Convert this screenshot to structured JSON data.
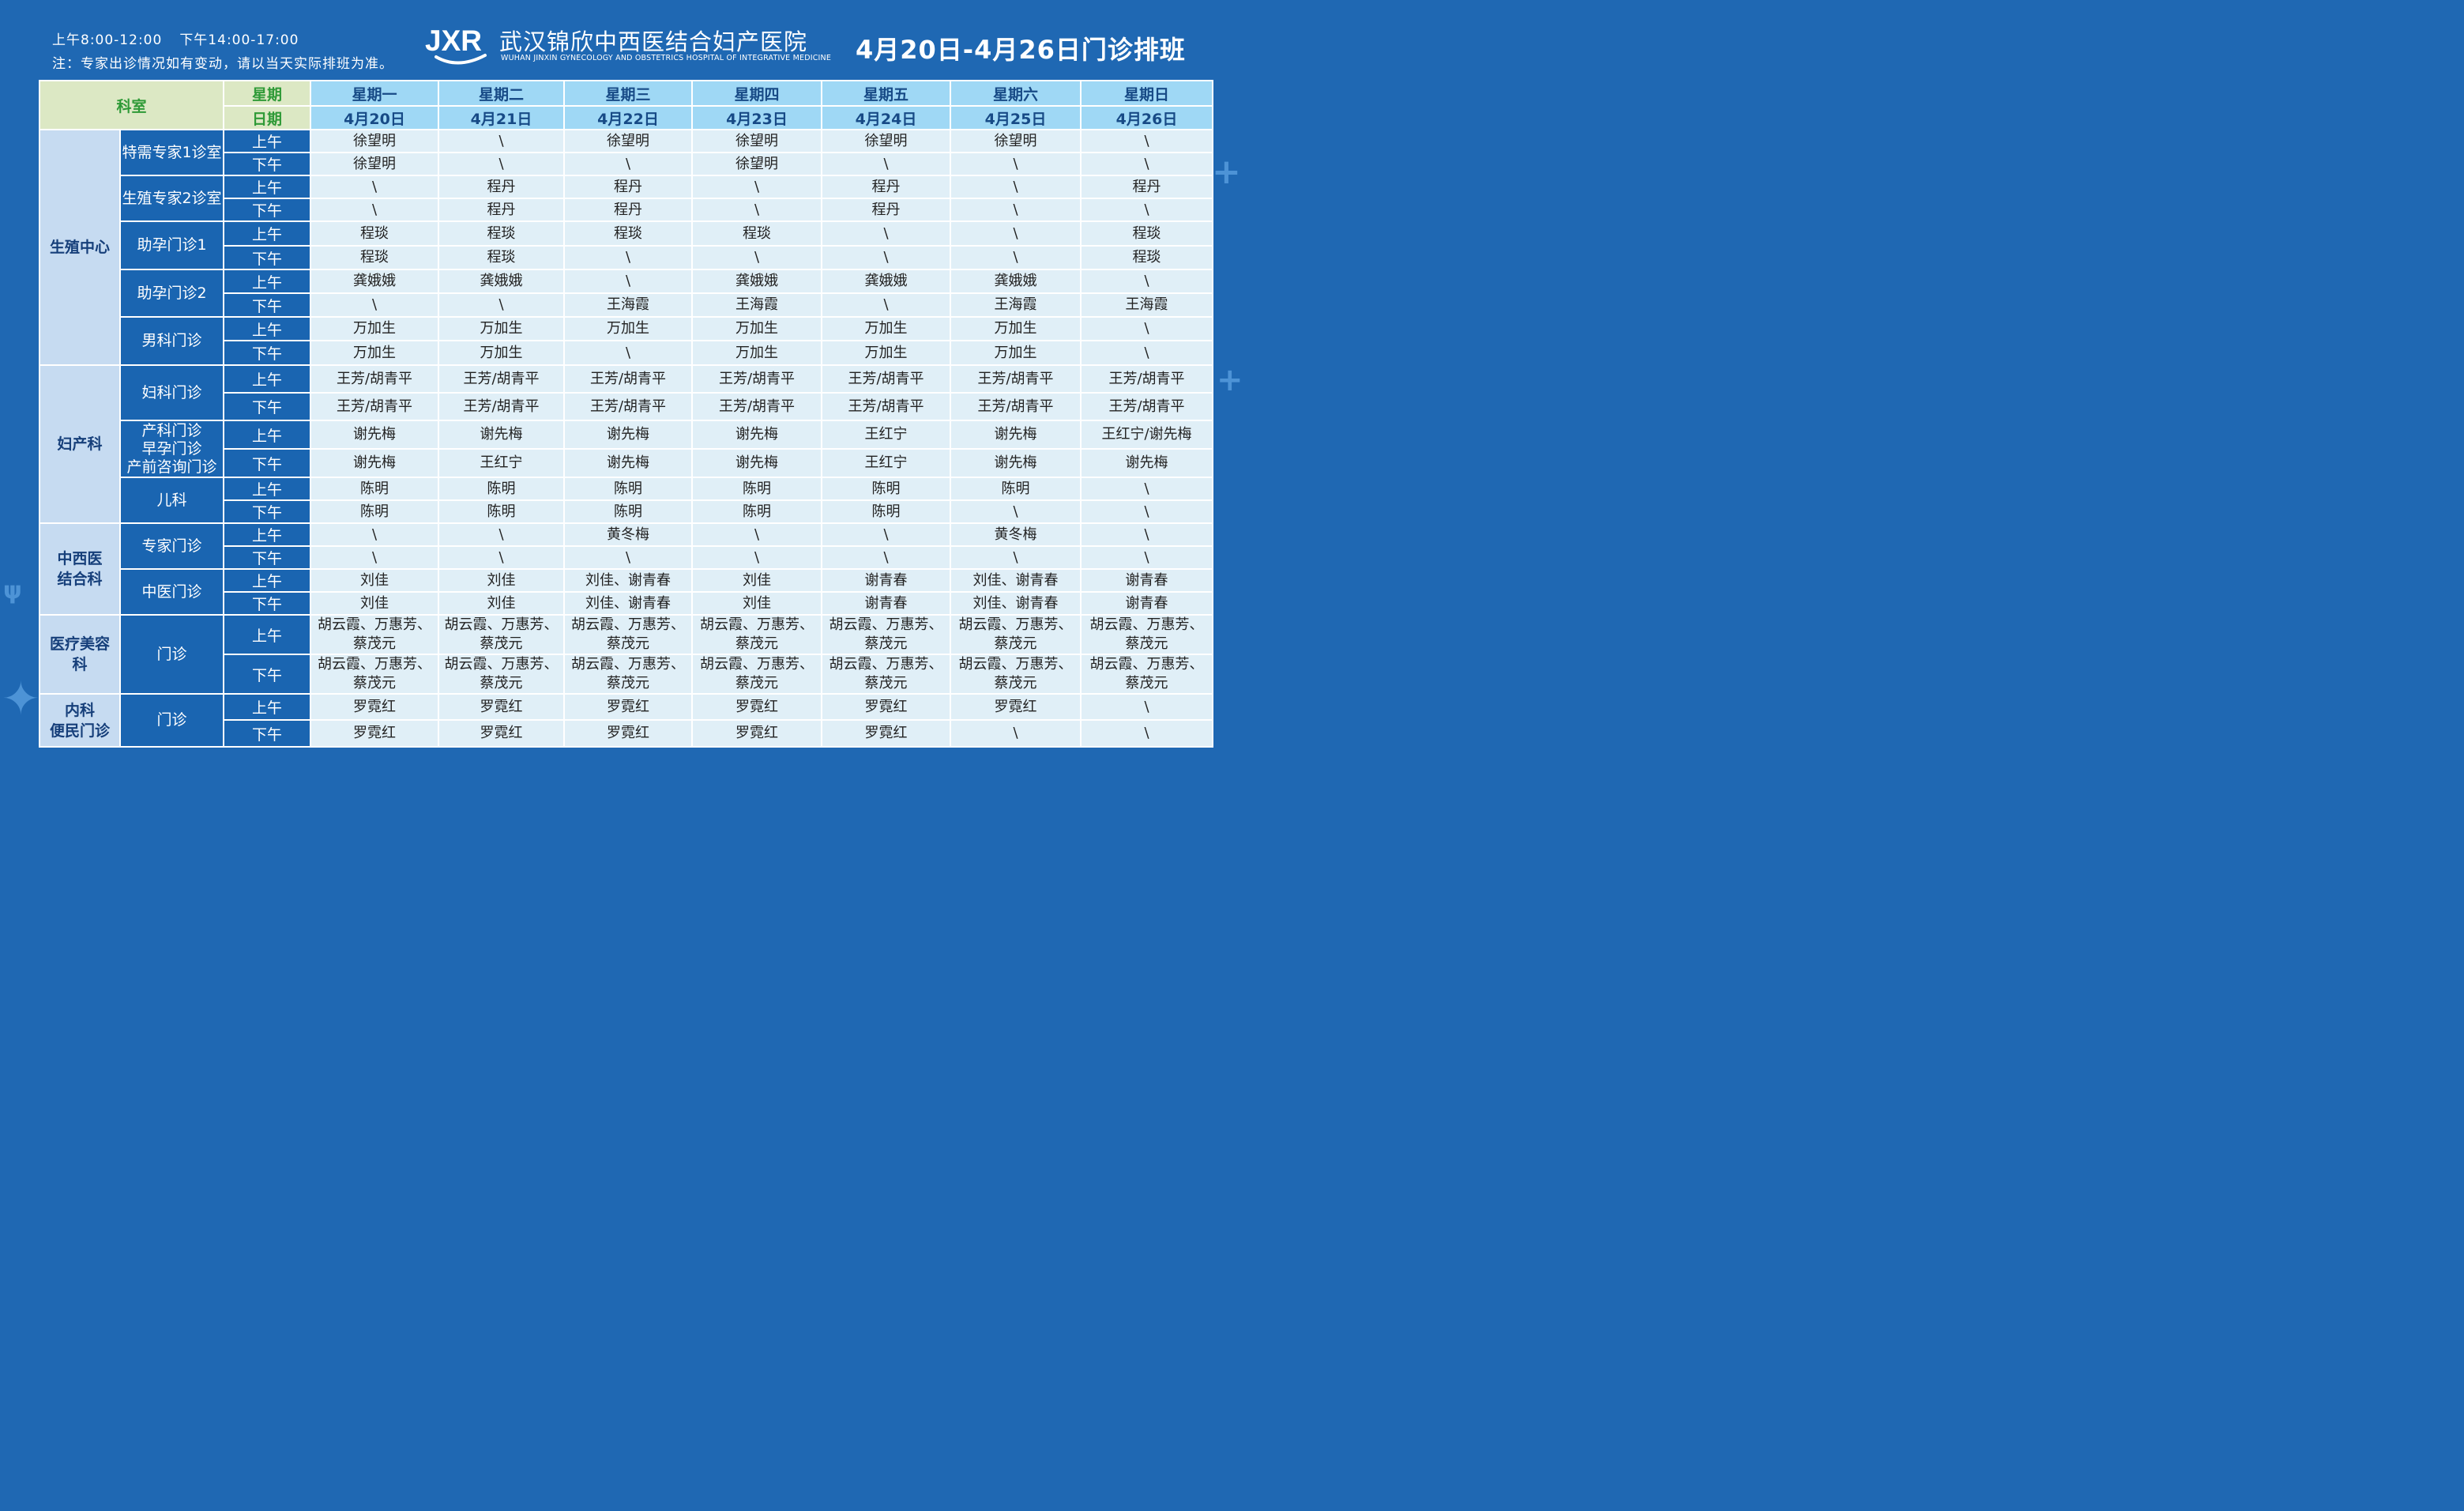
{
  "header": {
    "hours_am": "上午8:00-12:00",
    "hours_pm": "下午14:00-17:00",
    "note": "注：专家出诊情况如有变动，请以当天实际排班为准。",
    "logo_letters": "JXR",
    "hospital_name": "武汉锦欣中西医结合妇产医院",
    "hospital_name_en": "WUHAN JINXIN GYNECOLOGY AND OBSTETRICS HOSPITAL OF INTEGRATIVE MEDICINE",
    "week_title": "4月20日-4月26日门诊排班"
  },
  "table": {
    "dept_header": "科室",
    "weekday_label": "星期",
    "date_label": "日期",
    "am": "上午",
    "pm": "下午",
    "weekdays": [
      "星期一",
      "星期二",
      "星期三",
      "星期四",
      "星期五",
      "星期六",
      "星期日"
    ],
    "dates": [
      "4月20日",
      "4月21日",
      "4月22日",
      "4月23日",
      "4月24日",
      "4月25日",
      "4月26日"
    ],
    "departments": [
      {
        "name": "生殖中心",
        "clinics": [
          {
            "name": "特需专家1诊室",
            "am": [
              "徐望明",
              "\\",
              "徐望明",
              "徐望明",
              "徐望明",
              "徐望明",
              "\\"
            ],
            "pm": [
              "徐望明",
              "\\",
              "\\",
              "徐望明",
              "\\",
              "\\",
              "\\"
            ]
          },
          {
            "name": "生殖专家2诊室",
            "am": [
              "\\",
              "程丹",
              "程丹",
              "\\",
              "程丹",
              "\\",
              "程丹"
            ],
            "pm": [
              "\\",
              "程丹",
              "程丹",
              "\\",
              "程丹",
              "\\",
              "\\"
            ]
          },
          {
            "name": "助孕门诊1",
            "am": [
              "程琰",
              "程琰",
              "程琰",
              "程琰",
              "\\",
              "\\",
              "程琰"
            ],
            "pm": [
              "程琰",
              "程琰",
              "\\",
              "\\",
              "\\",
              "\\",
              "程琰"
            ]
          },
          {
            "name": "助孕门诊2",
            "am": [
              "龚娥娥",
              "龚娥娥",
              "\\",
              "龚娥娥",
              "龚娥娥",
              "龚娥娥",
              "\\"
            ],
            "pm": [
              "\\",
              "\\",
              "王海霞",
              "王海霞",
              "\\",
              "王海霞",
              "王海霞"
            ]
          },
          {
            "name": "男科门诊",
            "am": [
              "万加生",
              "万加生",
              "万加生",
              "万加生",
              "万加生",
              "万加生",
              "\\"
            ],
            "pm": [
              "万加生",
              "万加生",
              "\\",
              "万加生",
              "万加生",
              "万加生",
              "\\"
            ]
          }
        ]
      },
      {
        "name": "妇产科",
        "clinics": [
          {
            "name": "妇科门诊",
            "am": [
              "王芳/胡青平",
              "王芳/胡青平",
              "王芳/胡青平",
              "王芳/胡青平",
              "王芳/胡青平",
              "王芳/胡青平",
              "王芳/胡青平"
            ],
            "pm": [
              "王芳/胡青平",
              "王芳/胡青平",
              "王芳/胡青平",
              "王芳/胡青平",
              "王芳/胡青平",
              "王芳/胡青平",
              "王芳/胡青平"
            ]
          },
          {
            "name_lines": [
              "产科门诊",
              "早孕门诊",
              "产前咨询门诊"
            ],
            "am": [
              "谢先梅",
              "谢先梅",
              "谢先梅",
              "谢先梅",
              "王红宁",
              "谢先梅",
              "王红宁/谢先梅"
            ],
            "pm": [
              "谢先梅",
              "王红宁",
              "谢先梅",
              "谢先梅",
              "王红宁",
              "谢先梅",
              "谢先梅"
            ]
          },
          {
            "name": "儿科",
            "am": [
              "陈明",
              "陈明",
              "陈明",
              "陈明",
              "陈明",
              "陈明",
              "\\"
            ],
            "pm": [
              "陈明",
              "陈明",
              "陈明",
              "陈明",
              "陈明",
              "\\",
              "\\"
            ]
          }
        ]
      },
      {
        "name_lines": [
          "中西医",
          "结合科"
        ],
        "clinics": [
          {
            "name": "专家门诊",
            "am": [
              "\\",
              "\\",
              "黄冬梅",
              "\\",
              "\\",
              "黄冬梅",
              "\\"
            ],
            "pm": [
              "\\",
              "\\",
              "\\",
              "\\",
              "\\",
              "\\",
              "\\"
            ]
          },
          {
            "name": "中医门诊",
            "am": [
              "刘佳",
              "刘佳",
              "刘佳、谢青春",
              "刘佳",
              "谢青春",
              "刘佳、谢青春",
              "谢青春"
            ],
            "pm": [
              "刘佳",
              "刘佳",
              "刘佳、谢青春",
              "刘佳",
              "谢青春",
              "刘佳、谢青春",
              "谢青春"
            ]
          }
        ]
      },
      {
        "name_lines": [
          "医疗美容",
          "科"
        ],
        "clinics": [
          {
            "name": "门诊",
            "am_lines": [
              "胡云霞、万惠芳、",
              "蔡茂元"
            ],
            "pm_lines": [
              "胡云霞、万惠芳、",
              "蔡茂元"
            ]
          }
        ]
      },
      {
        "name_lines": [
          "内科",
          "便民门诊"
        ],
        "clinics": [
          {
            "name": "门诊",
            "am": [
              "罗霓红",
              "罗霓红",
              "罗霓红",
              "罗霓红",
              "罗霓红",
              "罗霓红",
              "\\"
            ],
            "pm": [
              "罗霓红",
              "罗霓红",
              "罗霓红",
              "罗霓红",
              "罗霓红",
              "\\",
              "\\"
            ]
          }
        ]
      }
    ]
  }
}
